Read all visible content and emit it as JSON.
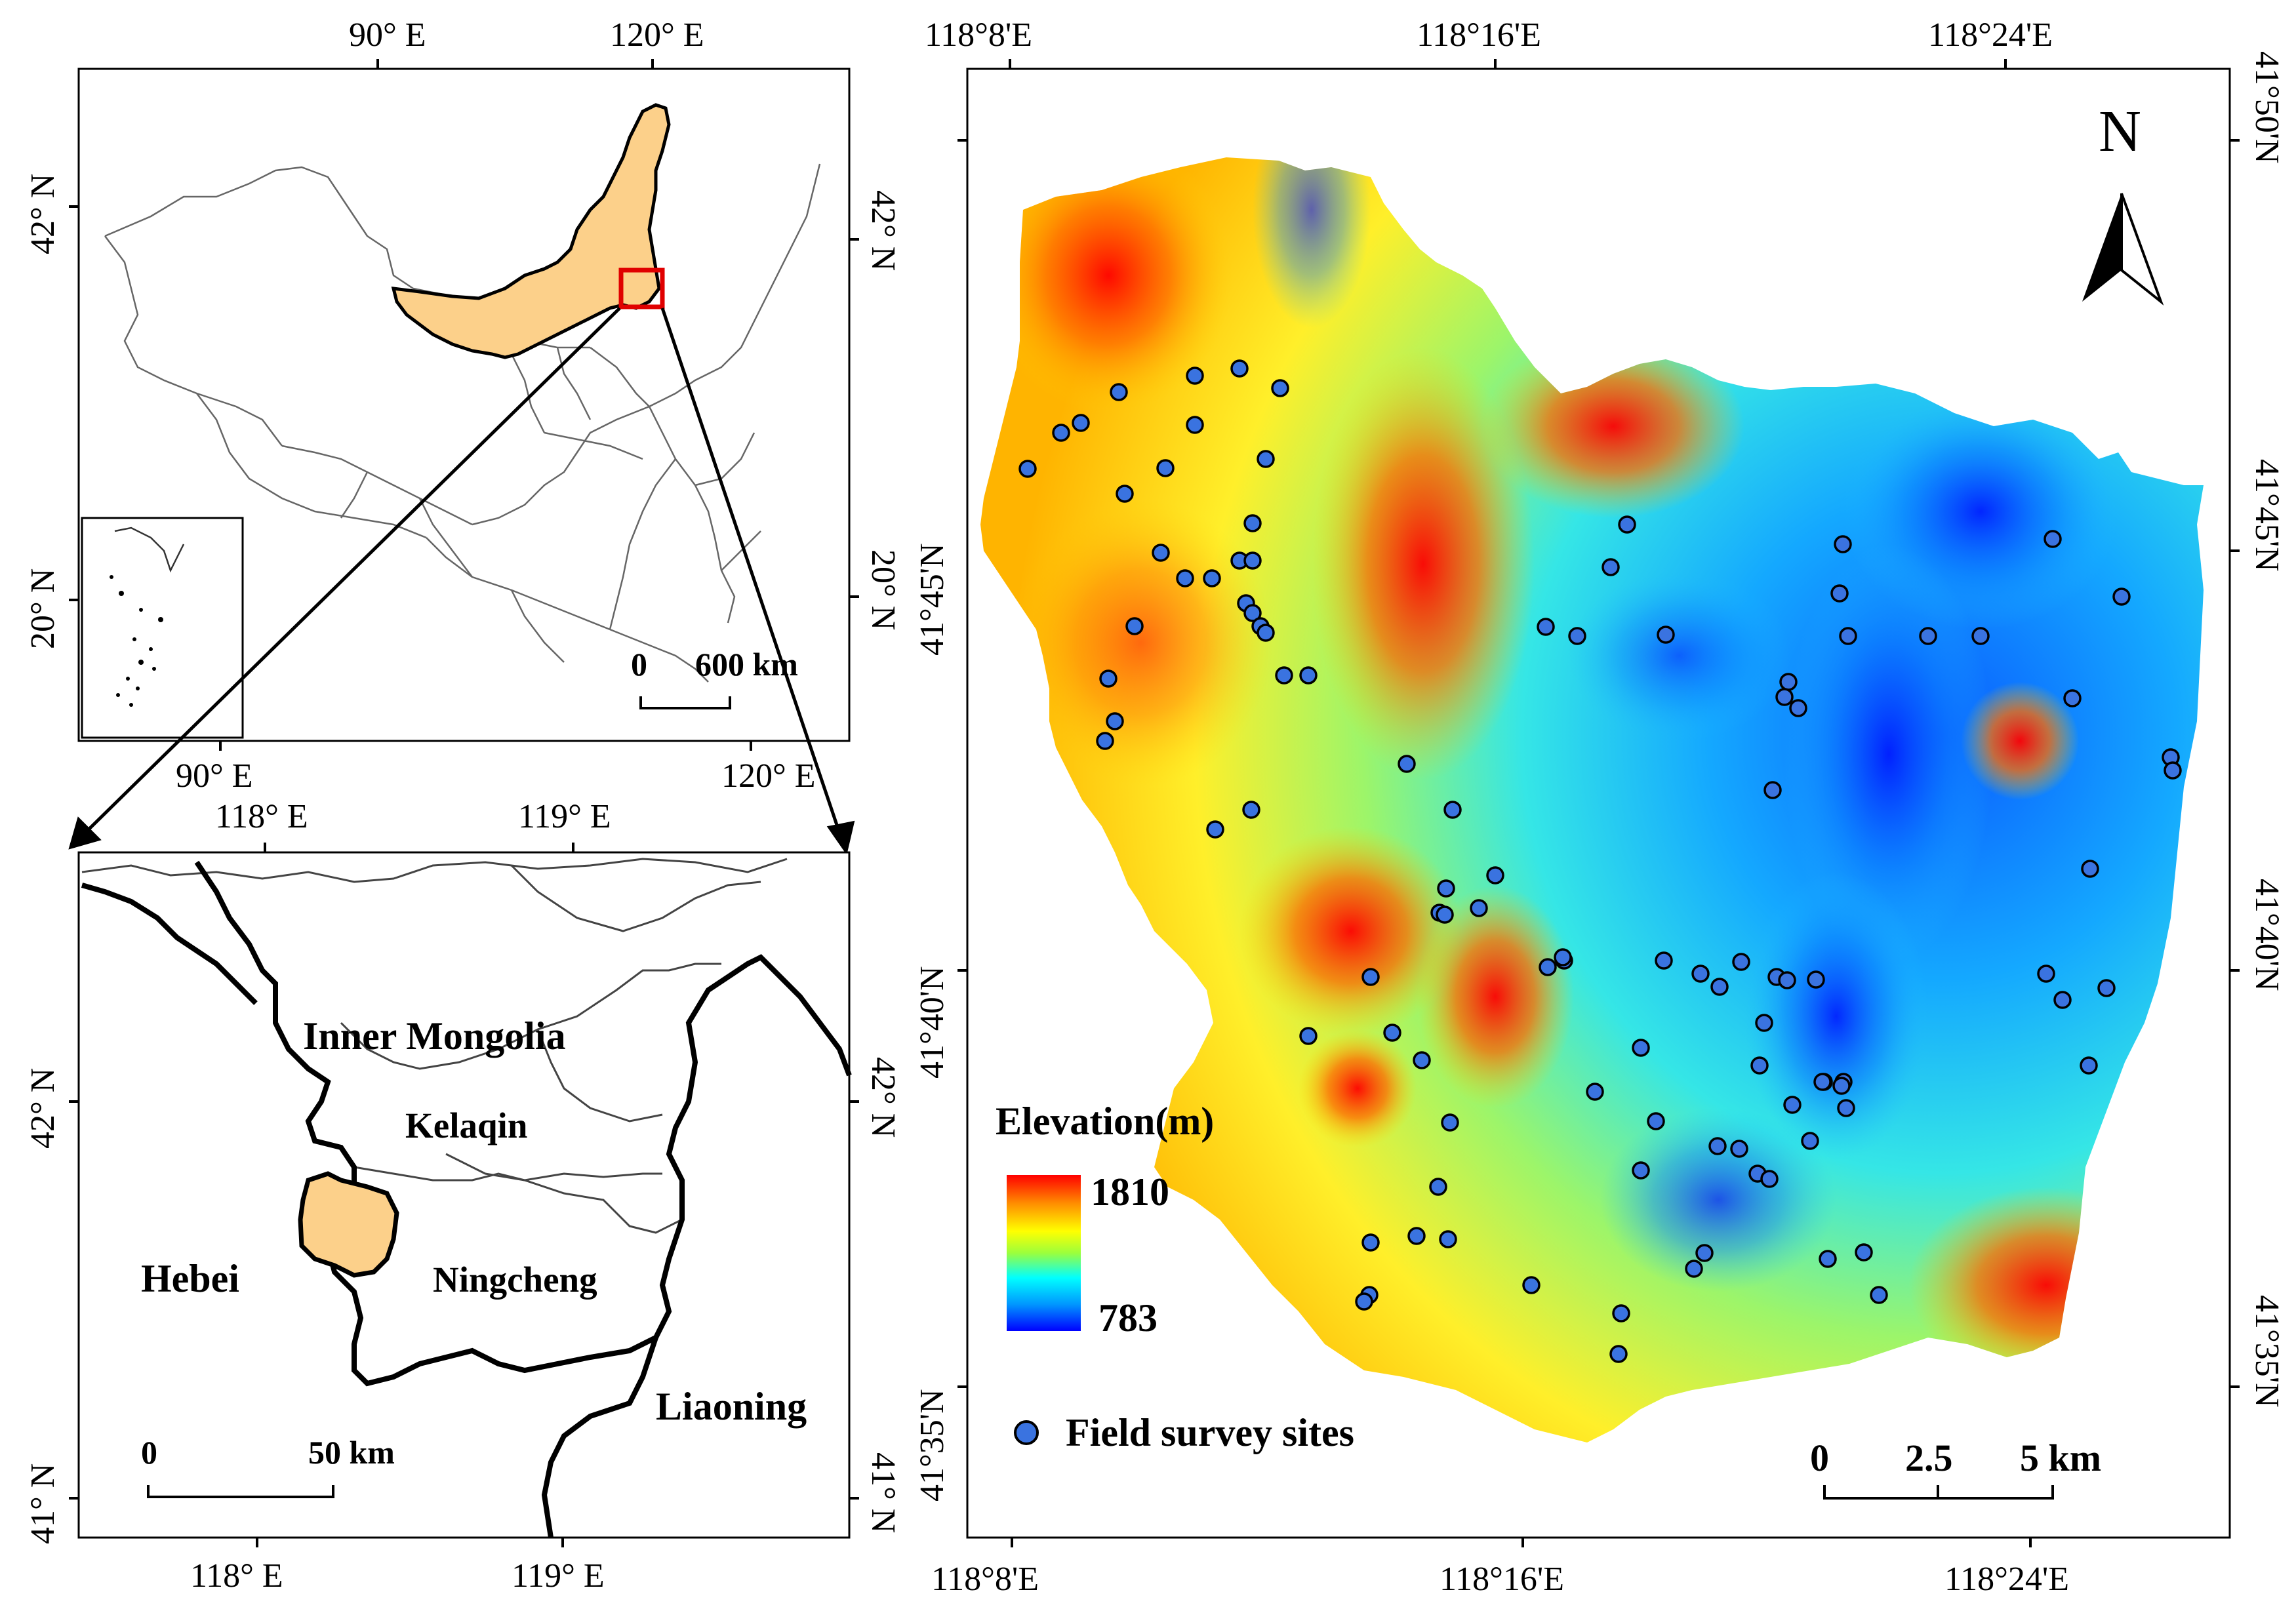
{
  "china_map": {
    "top_lon_labels": [
      "90° E",
      "120° E"
    ],
    "bottom_lon_labels": [
      "90° E",
      "120° E"
    ],
    "left_lat_labels": [
      "42° N",
      "20° N"
    ],
    "right_lat_labels": [
      "42° N",
      "20° N"
    ],
    "scale": {
      "zero": "0",
      "end": "600 km"
    },
    "highlight_color": "#fcd08a"
  },
  "region_map": {
    "top_lon_labels": [
      "118° E",
      "119° E"
    ],
    "bottom_lon_labels": [
      "118° E",
      "119° E"
    ],
    "left_lat_labels": [
      "42° N",
      "41° N"
    ],
    "right_lat_labels": [
      "42° N",
      "41° N"
    ],
    "place_names": {
      "inner_mongolia": "Inner Mongolia",
      "kelaqin": "Kelaqin",
      "ningcheng": "Ningcheng",
      "hebei": "Hebei",
      "liaoning": "Liaoning"
    },
    "scale": {
      "zero": "0",
      "end": "50  km"
    }
  },
  "dem_map": {
    "top_lon_labels": [
      "118°8'E",
      "118°16'E",
      "118°24'E"
    ],
    "bottom_lon_labels": [
      "118°8'E",
      "118°16'E",
      "118°24'E"
    ],
    "left_lat_labels": [
      "41°45'N",
      "41°40'N",
      "41°35'N"
    ],
    "right_lat_labels": [
      "41°50'N",
      "41°45'N",
      "41°40'N",
      "41°35'N"
    ],
    "north_label": "N",
    "legend": {
      "title": "Elevation(m)",
      "max": "1810",
      "min": "783",
      "ramp": [
        "#ff0000",
        "#ff8c00",
        "#ffff00",
        "#9bff3c",
        "#00ffff",
        "#0096ff",
        "#0000ff"
      ],
      "sites_label": "Field survey sites",
      "site_color": "#3a73e0"
    },
    "scale": {
      "zero": "0",
      "mid": "2.5",
      "end": "5 km"
    },
    "survey_sites_shown": 104
  }
}
